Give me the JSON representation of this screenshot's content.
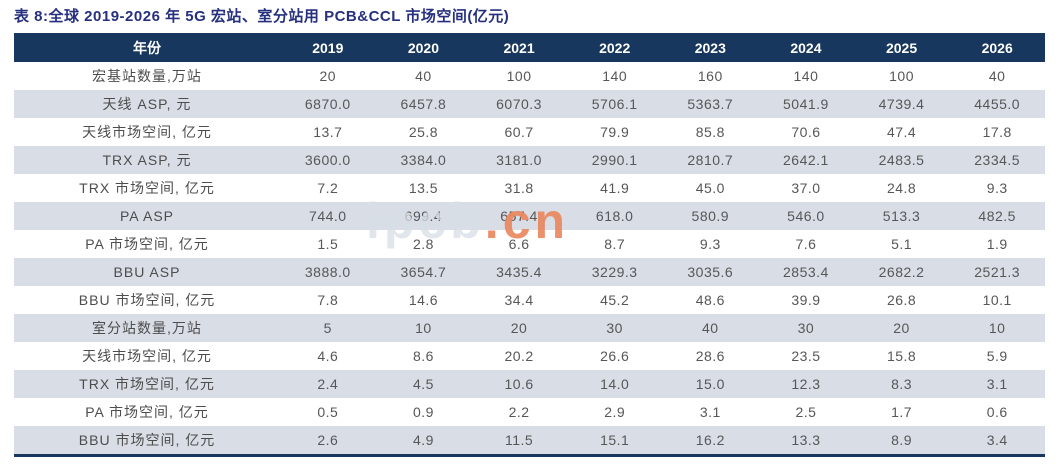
{
  "title": "表 8:全球 2019-2026 年 5G 宏站、室分站用 PCB&CCL 市场空间(亿元)",
  "colors": {
    "title_text": "#26307e",
    "header_bg": "#17375e",
    "header_text": "#ffffff",
    "row_shade": "#d9dde6",
    "cell_text": "#575757",
    "bottom_border": "#17375e",
    "watermark_accent": "#e98860"
  },
  "watermark": {
    "gray_text": "ipcb",
    "accent_text": ".cn"
  },
  "table": {
    "label_header": "年份",
    "years": [
      "2019",
      "2020",
      "2021",
      "2022",
      "2023",
      "2024",
      "2025",
      "2026"
    ],
    "rows": [
      {
        "label": "宏基站数量,万站",
        "values": [
          "20",
          "40",
          "100",
          "140",
          "160",
          "140",
          "100",
          "40"
        ]
      },
      {
        "label": "天线 ASP, 元",
        "values": [
          "6870.0",
          "6457.8",
          "6070.3",
          "5706.1",
          "5363.7",
          "5041.9",
          "4739.4",
          "4455.0"
        ]
      },
      {
        "label": "天线市场空间, 亿元",
        "values": [
          "13.7",
          "25.8",
          "60.7",
          "79.9",
          "85.8",
          "70.6",
          "47.4",
          "17.8"
        ]
      },
      {
        "label": "TRX ASP, 元",
        "values": [
          "3600.0",
          "3384.0",
          "3181.0",
          "2990.1",
          "2810.7",
          "2642.1",
          "2483.5",
          "2334.5"
        ]
      },
      {
        "label": "TRX 市场空间, 亿元",
        "values": [
          "7.2",
          "13.5",
          "31.8",
          "41.9",
          "45.0",
          "37.0",
          "24.8",
          "9.3"
        ]
      },
      {
        "label": "PA ASP",
        "values": [
          "744.0",
          "699.4",
          "657.4",
          "618.0",
          "580.9",
          "546.0",
          "513.3",
          "482.5"
        ]
      },
      {
        "label": "PA 市场空间, 亿元",
        "values": [
          "1.5",
          "2.8",
          "6.6",
          "8.7",
          "9.3",
          "7.6",
          "5.1",
          "1.9"
        ]
      },
      {
        "label": "BBU ASP",
        "values": [
          "3888.0",
          "3654.7",
          "3435.4",
          "3229.3",
          "3035.6",
          "2853.4",
          "2682.2",
          "2521.3"
        ]
      },
      {
        "label": "BBU 市场空间, 亿元",
        "values": [
          "7.8",
          "14.6",
          "34.4",
          "45.2",
          "48.6",
          "39.9",
          "26.8",
          "10.1"
        ]
      },
      {
        "label": "室分站数量,万站",
        "values": [
          "5",
          "10",
          "20",
          "30",
          "40",
          "30",
          "20",
          "10"
        ]
      },
      {
        "label": "天线市场空间, 亿元",
        "values": [
          "4.6",
          "8.6",
          "20.2",
          "26.6",
          "28.6",
          "23.5",
          "15.8",
          "5.9"
        ]
      },
      {
        "label": "TRX 市场空间, 亿元",
        "values": [
          "2.4",
          "4.5",
          "10.6",
          "14.0",
          "15.0",
          "12.3",
          "8.3",
          "3.1"
        ]
      },
      {
        "label": "PA 市场空间, 亿元",
        "values": [
          "0.5",
          "0.9",
          "2.2",
          "2.9",
          "3.1",
          "2.5",
          "1.7",
          "0.6"
        ]
      },
      {
        "label": "BBU 市场空间, 亿元",
        "values": [
          "2.6",
          "4.9",
          "11.5",
          "15.1",
          "16.2",
          "13.3",
          "8.9",
          "3.4"
        ]
      }
    ]
  }
}
